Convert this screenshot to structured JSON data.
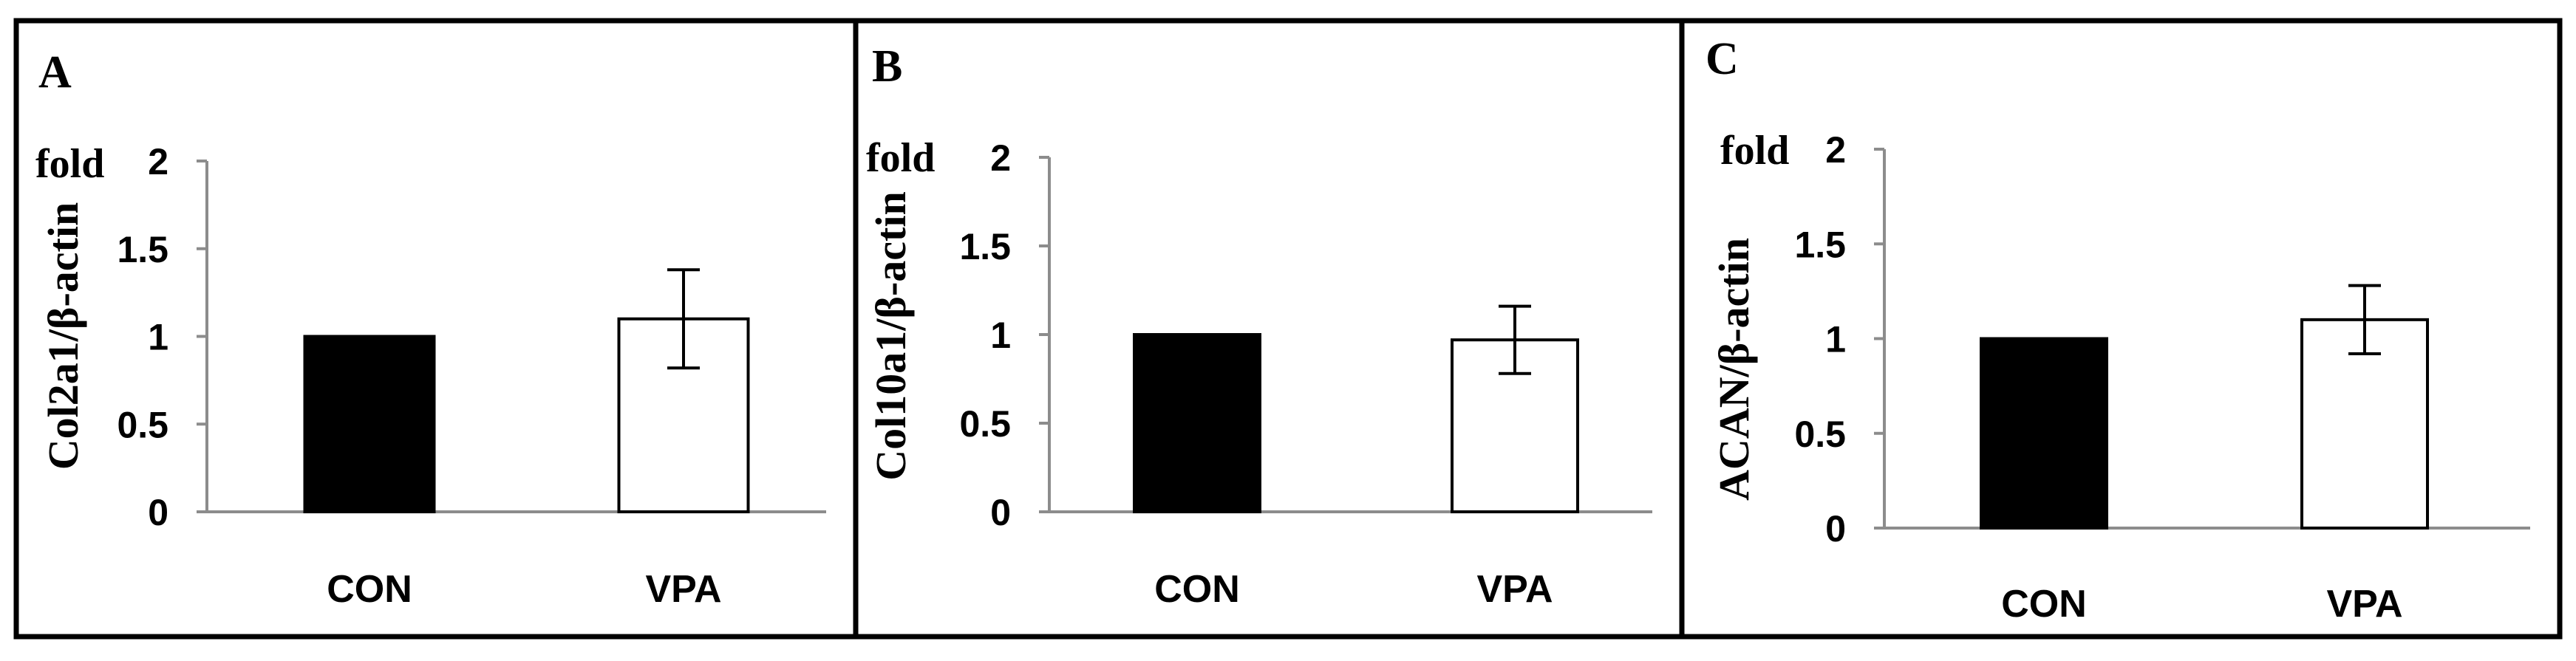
{
  "colors": {
    "border": "#000000",
    "axis": "#8c8c8c",
    "con_fill": "#000000",
    "vpa_fill": "#ffffff",
    "bar_stroke": "#000000",
    "error_bar": "#000000"
  },
  "chart_data": [
    {
      "type": "bar",
      "panel": "A",
      "unit": "fold",
      "ylabel": "Col2a1/β-actin",
      "categories": [
        "CON",
        "VPA"
      ],
      "values": [
        1.0,
        1.1
      ],
      "errors": [
        0,
        0.28
      ],
      "yticks": [
        "0",
        "0.5",
        "1",
        "1.5",
        "2"
      ],
      "ylim": [
        0,
        2
      ],
      "grid": false,
      "bar_fill": [
        "con_fill",
        "vpa_fill"
      ]
    },
    {
      "type": "bar",
      "panel": "B",
      "unit": "fold",
      "ylabel": "Col10a1/β-actin",
      "categories": [
        "CON",
        "VPA"
      ],
      "values": [
        1.0,
        0.97
      ],
      "errors": [
        0,
        0.19
      ],
      "yticks": [
        "0",
        "0.5",
        "1",
        "1.5",
        "2"
      ],
      "ylim": [
        0,
        2
      ],
      "grid": false,
      "bar_fill": [
        "con_fill",
        "vpa_fill"
      ]
    },
    {
      "type": "bar",
      "panel": "C",
      "unit": "fold",
      "ylabel": "ACAN/β-actin",
      "categories": [
        "CON",
        "VPA"
      ],
      "values": [
        1.0,
        1.1
      ],
      "errors": [
        0,
        0.18
      ],
      "yticks": [
        "0",
        "0.5",
        "1",
        "1.5",
        "2"
      ],
      "ylim": [
        0,
        2
      ],
      "grid": false,
      "bar_fill": [
        "con_fill",
        "vpa_fill"
      ]
    }
  ]
}
